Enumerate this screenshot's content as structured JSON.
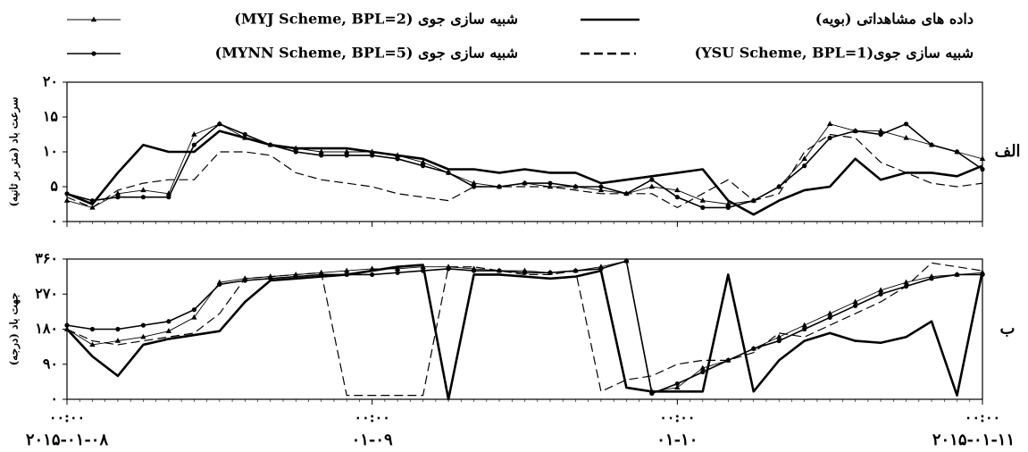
{
  "chart_data": [
    {
      "type": "line",
      "panel_label": "الف",
      "ylabel": "سرعت باد (متر بر ثانیه)",
      "x": [
        0,
        2,
        4,
        6,
        8,
        10,
        12,
        14,
        16,
        18,
        20,
        22,
        24,
        26,
        28,
        30,
        32,
        34,
        36,
        38,
        40,
        42,
        44,
        46,
        48,
        50,
        52,
        54,
        56,
        58,
        60,
        62,
        64,
        66,
        68,
        70,
        72
      ],
      "xlim": [
        0,
        72
      ],
      "xticks": [
        {
          "value": 0,
          "label": "۰۰:۰۰",
          "date": "۲۰۱۵-۰۱-۰۸"
        },
        {
          "value": 24,
          "label": "۰۰:۰۰",
          "date": "۰۱-۰۹"
        },
        {
          "value": 48,
          "label": "۰۰:۰۰",
          "date": "۰۱-۱۰"
        },
        {
          "value": 72,
          "label": "۰۰:۰۰",
          "date": "۲۰۱۵-۰۱-۱۱"
        }
      ],
      "ylim": [
        0,
        20
      ],
      "yticks": [
        {
          "value": 0,
          "label": "۰"
        },
        {
          "value": 5,
          "label": "۵"
        },
        {
          "value": 10,
          "label": "۱۰"
        },
        {
          "value": 15,
          "label": "۱۵"
        },
        {
          "value": 20,
          "label": "۲۰"
        }
      ],
      "series": [
        {
          "name": "داده های مشاهداتی (بویه)",
          "color": "#000000",
          "style": "solid",
          "marker": "none",
          "values": [
            4,
            2.5,
            7,
            11,
            10,
            10,
            13,
            12,
            11,
            10.5,
            10.5,
            10.5,
            10,
            9.5,
            9,
            7.5,
            7.5,
            7,
            7.5,
            7,
            7,
            5.5,
            6,
            6.5,
            7,
            7.5,
            3,
            1,
            3,
            4.5,
            5,
            9,
            6,
            7,
            7,
            6.5,
            8
          ]
        },
        {
          "name": "شبیه سازی جوی(YSU Scheme, BPL=1)",
          "color": "#000000",
          "style": "dashed",
          "marker": "none",
          "values": [
            3.5,
            2,
            4.5,
            5.5,
            6,
            6,
            10,
            10,
            9.5,
            7,
            6,
            5.5,
            5,
            4,
            3.5,
            3,
            5,
            5,
            5,
            5,
            4.5,
            4,
            4,
            4,
            2,
            4,
            6,
            3,
            4,
            10,
            12.5,
            12,
            8.5,
            7,
            5.5,
            5,
            5.5
          ]
        },
        {
          "name": "شبیه سازی جوی (MYJ Scheme, BPL=2)",
          "color": "#000000",
          "style": "thin",
          "marker": "triangle",
          "values": [
            3,
            2,
            4,
            4.5,
            4,
            12.5,
            14,
            12,
            11,
            10.5,
            10,
            10,
            10,
            9.5,
            8.5,
            7,
            5.5,
            5,
            5.5,
            5,
            5,
            4.5,
            4,
            5,
            4.5,
            3,
            2.5,
            3,
            5,
            9,
            14,
            13,
            13,
            12,
            11,
            10,
            9
          ]
        },
        {
          "name": "شبیه سازی جوی (MYNN Scheme, BPL=5)",
          "color": "#000000",
          "style": "solid",
          "marker": "circle",
          "values": [
            4,
            3,
            3.5,
            3.5,
            3.5,
            11,
            14,
            12.5,
            11,
            10,
            9.5,
            9.5,
            9.5,
            9,
            8,
            7,
            5,
            5,
            5.5,
            5.5,
            5,
            5,
            4,
            6,
            3.5,
            2,
            2,
            3,
            5,
            8,
            12,
            13,
            12.5,
            14,
            11,
            10,
            7.5
          ]
        }
      ]
    },
    {
      "type": "line",
      "panel_label": "ب",
      "ylabel": "جهت باد (درجه)",
      "x": [
        0,
        2,
        4,
        6,
        8,
        10,
        12,
        14,
        16,
        18,
        20,
        22,
        24,
        26,
        28,
        30,
        32,
        34,
        36,
        38,
        40,
        42,
        44,
        46,
        48,
        50,
        52,
        54,
        56,
        58,
        60,
        62,
        64,
        66,
        68,
        70,
        72
      ],
      "xlim": [
        0,
        72
      ],
      "ylim": [
        0,
        360
      ],
      "yticks": [
        {
          "value": 0,
          "label": "۰"
        },
        {
          "value": 90,
          "label": "۹۰"
        },
        {
          "value": 180,
          "label": "۱۸۰"
        },
        {
          "value": 270,
          "label": "۲۷۰"
        },
        {
          "value": 360,
          "label": "۳۶۰"
        }
      ],
      "series": [
        {
          "color": "#000000",
          "style": "solid",
          "marker": "none",
          "values": [
            180,
            110,
            60,
            140,
            155,
            165,
            175,
            250,
            305,
            310,
            315,
            320,
            330,
            340,
            345,
            0,
            320,
            320,
            315,
            310,
            315,
            330,
            30,
            20,
            20,
            20,
            320,
            20,
            100,
            150,
            170,
            150,
            145,
            160,
            200,
            10,
            330
          ]
        },
        {
          "color": "#000000",
          "style": "dashed",
          "marker": "none",
          "values": [
            180,
            150,
            140,
            150,
            160,
            170,
            220,
            310,
            315,
            320,
            325,
            10,
            10,
            10,
            10,
            340,
            340,
            330,
            320,
            320,
            330,
            20,
            50,
            60,
            90,
            100,
            100,
            120,
            170,
            160,
            190,
            220,
            250,
            290,
            350,
            340,
            330
          ]
        },
        {
          "color": "#000000",
          "style": "thin",
          "marker": "triangle",
          "values": [
            180,
            140,
            150,
            160,
            175,
            210,
            300,
            310,
            315,
            320,
            325,
            330,
            335,
            335,
            340,
            340,
            335,
            330,
            330,
            325,
            330,
            340,
            355,
            20,
            30,
            80,
            100,
            130,
            160,
            190,
            220,
            250,
            280,
            300,
            315,
            320,
            325
          ]
        },
        {
          "color": "#000000",
          "style": "solid",
          "marker": "circle",
          "values": [
            190,
            180,
            180,
            190,
            200,
            230,
            295,
            305,
            310,
            315,
            320,
            320,
            320,
            325,
            330,
            335,
            330,
            330,
            325,
            325,
            330,
            335,
            355,
            15,
            40,
            70,
            100,
            130,
            150,
            180,
            210,
            240,
            270,
            290,
            310,
            320,
            320
          ]
        }
      ]
    }
  ]
}
